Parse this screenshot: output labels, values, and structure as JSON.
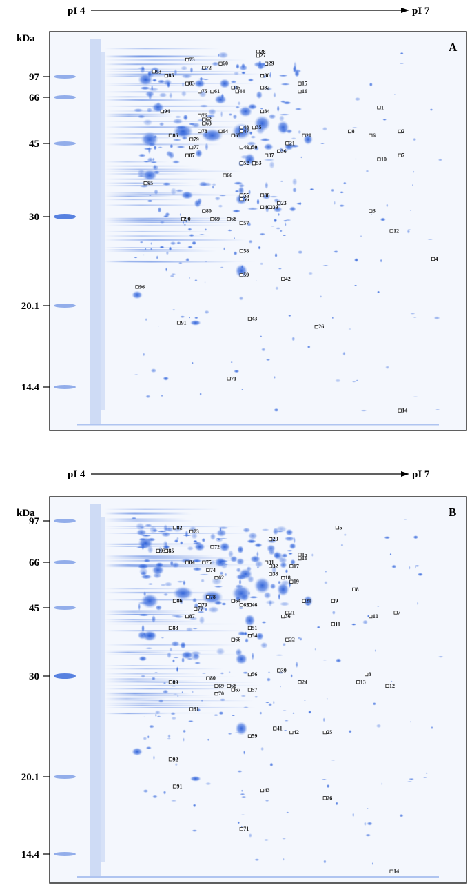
{
  "colors": {
    "gel_background": "#f4f7fd",
    "gel_stain": "#2f63d8",
    "gel_stain_light": "#9fb8ec",
    "marker": "#1b1b1b",
    "frame": "#2a2a2a"
  },
  "panels": [
    {
      "id": "A",
      "panel_label": "A",
      "ph_axis": {
        "start": "pI 4",
        "end": "pI 7"
      },
      "mw_unit": "kDa",
      "mw_ticks": [
        {
          "label": "97",
          "value": 97
        },
        {
          "label": "66",
          "value": 66
        },
        {
          "label": "45",
          "value": 45
        },
        {
          "label": "30",
          "value": 30
        },
        {
          "label": "20.1",
          "value": 20.1
        },
        {
          "label": "14.4",
          "value": 14.4
        }
      ],
      "spots": [
        {
          "label": "1",
          "fx": 0.79,
          "fy": 0.19
        },
        {
          "label": "2",
          "fx": 0.84,
          "fy": 0.25
        },
        {
          "label": "3",
          "fx": 0.77,
          "fy": 0.45
        },
        {
          "label": "4",
          "fx": 0.92,
          "fy": 0.57
        },
        {
          "label": "6",
          "fx": 0.77,
          "fy": 0.26
        },
        {
          "label": "7",
          "fx": 0.84,
          "fy": 0.31
        },
        {
          "label": "8",
          "fx": 0.72,
          "fy": 0.25
        },
        {
          "label": "10",
          "fx": 0.79,
          "fy": 0.32
        },
        {
          "label": "12",
          "fx": 0.82,
          "fy": 0.5
        },
        {
          "label": "14",
          "fx": 0.84,
          "fy": 0.95
        },
        {
          "label": "15",
          "fx": 0.6,
          "fy": 0.13
        },
        {
          "label": "16",
          "fx": 0.6,
          "fy": 0.15
        },
        {
          "label": "20",
          "fx": 0.61,
          "fy": 0.26
        },
        {
          "label": "21",
          "fx": 0.57,
          "fy": 0.28
        },
        {
          "label": "23",
          "fx": 0.55,
          "fy": 0.43
        },
        {
          "label": "26",
          "fx": 0.64,
          "fy": 0.74
        },
        {
          "label": "27",
          "fx": 0.5,
          "fy": 0.06
        },
        {
          "label": "28",
          "fx": 0.5,
          "fy": 0.05
        },
        {
          "label": "29",
          "fx": 0.52,
          "fy": 0.08
        },
        {
          "label": "30",
          "fx": 0.51,
          "fy": 0.11
        },
        {
          "label": "32",
          "fx": 0.51,
          "fy": 0.14
        },
        {
          "label": "34",
          "fx": 0.51,
          "fy": 0.2
        },
        {
          "label": "35",
          "fx": 0.49,
          "fy": 0.24
        },
        {
          "label": "36",
          "fx": 0.55,
          "fy": 0.3
        },
        {
          "label": "37",
          "fx": 0.52,
          "fy": 0.31
        },
        {
          "label": "38",
          "fx": 0.51,
          "fy": 0.41
        },
        {
          "label": "39",
          "fx": 0.53,
          "fy": 0.44
        },
        {
          "label": "40",
          "fx": 0.51,
          "fy": 0.44
        },
        {
          "label": "42",
          "fx": 0.56,
          "fy": 0.62
        },
        {
          "label": "43",
          "fx": 0.48,
          "fy": 0.72
        },
        {
          "label": "44",
          "fx": 0.45,
          "fy": 0.15
        },
        {
          "label": "45",
          "fx": 0.44,
          "fy": 0.14
        },
        {
          "label": "47",
          "fx": 0.46,
          "fy": 0.25
        },
        {
          "label": "48",
          "fx": 0.46,
          "fy": 0.24
        },
        {
          "label": "49",
          "fx": 0.46,
          "fy": 0.29
        },
        {
          "label": "50",
          "fx": 0.48,
          "fy": 0.29
        },
        {
          "label": "52",
          "fx": 0.46,
          "fy": 0.33
        },
        {
          "label": "53",
          "fx": 0.49,
          "fy": 0.33
        },
        {
          "label": "55",
          "fx": 0.46,
          "fy": 0.41
        },
        {
          "label": "56",
          "fx": 0.46,
          "fy": 0.42
        },
        {
          "label": "57",
          "fx": 0.46,
          "fy": 0.48
        },
        {
          "label": "58",
          "fx": 0.46,
          "fy": 0.55
        },
        {
          "label": "59",
          "fx": 0.46,
          "fy": 0.61
        },
        {
          "label": "60",
          "fx": 0.41,
          "fy": 0.08
        },
        {
          "label": "61",
          "fx": 0.39,
          "fy": 0.15
        },
        {
          "label": "62",
          "fx": 0.37,
          "fy": 0.22
        },
        {
          "label": "63",
          "fx": 0.37,
          "fy": 0.23
        },
        {
          "label": "64",
          "fx": 0.41,
          "fy": 0.25
        },
        {
          "label": "65",
          "fx": 0.44,
          "fy": 0.26
        },
        {
          "label": "66",
          "fx": 0.42,
          "fy": 0.36
        },
        {
          "label": "68",
          "fx": 0.43,
          "fy": 0.47
        },
        {
          "label": "69",
          "fx": 0.39,
          "fy": 0.47
        },
        {
          "label": "71",
          "fx": 0.43,
          "fy": 0.87
        },
        {
          "label": "72",
          "fx": 0.37,
          "fy": 0.09
        },
        {
          "label": "73",
          "fx": 0.33,
          "fy": 0.07
        },
        {
          "label": "75",
          "fx": 0.36,
          "fy": 0.15
        },
        {
          "label": "76",
          "fx": 0.36,
          "fy": 0.21
        },
        {
          "label": "77",
          "fx": 0.34,
          "fy": 0.29
        },
        {
          "label": "78",
          "fx": 0.36,
          "fy": 0.25
        },
        {
          "label": "79",
          "fx": 0.34,
          "fy": 0.27
        },
        {
          "label": "80",
          "fx": 0.37,
          "fy": 0.45
        },
        {
          "label": "83",
          "fx": 0.33,
          "fy": 0.13
        },
        {
          "label": "85",
          "fx": 0.28,
          "fy": 0.11
        },
        {
          "label": "86",
          "fx": 0.29,
          "fy": 0.26
        },
        {
          "label": "87",
          "fx": 0.33,
          "fy": 0.31
        },
        {
          "label": "90",
          "fx": 0.32,
          "fy": 0.47
        },
        {
          "label": "91",
          "fx": 0.31,
          "fy": 0.73
        },
        {
          "label": "93",
          "fx": 0.25,
          "fy": 0.1
        },
        {
          "label": "94",
          "fx": 0.27,
          "fy": 0.2
        },
        {
          "label": "95",
          "fx": 0.23,
          "fy": 0.38
        },
        {
          "label": "96",
          "fx": 0.21,
          "fy": 0.64
        }
      ]
    },
    {
      "id": "B",
      "panel_label": "B",
      "ph_axis": {
        "start": "pI 4",
        "end": "pI 7"
      },
      "mw_unit": "kDa",
      "mw_ticks": [
        {
          "label": "97",
          "value": 97
        },
        {
          "label": "66",
          "value": 66
        },
        {
          "label": "45",
          "value": 45
        },
        {
          "label": "30",
          "value": 30
        },
        {
          "label": "20.1",
          "value": 20.1
        },
        {
          "label": "14.4",
          "value": 14.4
        }
      ],
      "spots": [
        {
          "label": "3",
          "fx": 0.76,
          "fy": 0.46
        },
        {
          "label": "5",
          "fx": 0.69,
          "fy": 0.08
        },
        {
          "label": "7",
          "fx": 0.83,
          "fy": 0.3
        },
        {
          "label": "8",
          "fx": 0.73,
          "fy": 0.24
        },
        {
          "label": "9",
          "fx": 0.68,
          "fy": 0.27
        },
        {
          "label": "10",
          "fx": 0.77,
          "fy": 0.31
        },
        {
          "label": "11",
          "fx": 0.68,
          "fy": 0.33
        },
        {
          "label": "12",
          "fx": 0.81,
          "fy": 0.49
        },
        {
          "label": "13",
          "fx": 0.74,
          "fy": 0.48
        },
        {
          "label": "14",
          "fx": 0.82,
          "fy": 0.97
        },
        {
          "label": "15",
          "fx": 0.6,
          "fy": 0.15
        },
        {
          "label": "16",
          "fx": 0.6,
          "fy": 0.16
        },
        {
          "label": "17",
          "fx": 0.58,
          "fy": 0.18
        },
        {
          "label": "18",
          "fx": 0.56,
          "fy": 0.21
        },
        {
          "label": "19",
          "fx": 0.58,
          "fy": 0.22
        },
        {
          "label": "20",
          "fx": 0.61,
          "fy": 0.27
        },
        {
          "label": "21",
          "fx": 0.57,
          "fy": 0.3
        },
        {
          "label": "22",
          "fx": 0.57,
          "fy": 0.37
        },
        {
          "label": "24",
          "fx": 0.6,
          "fy": 0.48
        },
        {
          "label": "25",
          "fx": 0.66,
          "fy": 0.61
        },
        {
          "label": "26",
          "fx": 0.66,
          "fy": 0.78
        },
        {
          "label": "29",
          "fx": 0.53,
          "fy": 0.11
        },
        {
          "label": "31",
          "fx": 0.52,
          "fy": 0.17
        },
        {
          "label": "32",
          "fx": 0.53,
          "fy": 0.18
        },
        {
          "label": "33",
          "fx": 0.53,
          "fy": 0.2
        },
        {
          "label": "36",
          "fx": 0.56,
          "fy": 0.31
        },
        {
          "label": "39",
          "fx": 0.55,
          "fy": 0.45
        },
        {
          "label": "41",
          "fx": 0.54,
          "fy": 0.6
        },
        {
          "label": "42",
          "fx": 0.58,
          "fy": 0.61
        },
        {
          "label": "43",
          "fx": 0.51,
          "fy": 0.76
        },
        {
          "label": "46",
          "fx": 0.48,
          "fy": 0.28
        },
        {
          "label": "51",
          "fx": 0.48,
          "fy": 0.34
        },
        {
          "label": "54",
          "fx": 0.48,
          "fy": 0.36
        },
        {
          "label": "56",
          "fx": 0.48,
          "fy": 0.46
        },
        {
          "label": "57",
          "fx": 0.48,
          "fy": 0.5
        },
        {
          "label": "59",
          "fx": 0.48,
          "fy": 0.62
        },
        {
          "label": "62",
          "fx": 0.4,
          "fy": 0.21
        },
        {
          "label": "64",
          "fx": 0.44,
          "fy": 0.27
        },
        {
          "label": "65",
          "fx": 0.46,
          "fy": 0.28
        },
        {
          "label": "66",
          "fx": 0.44,
          "fy": 0.37
        },
        {
          "label": "67",
          "fx": 0.44,
          "fy": 0.5
        },
        {
          "label": "68",
          "fx": 0.43,
          "fy": 0.49
        },
        {
          "label": "69",
          "fx": 0.4,
          "fy": 0.49
        },
        {
          "label": "70",
          "fx": 0.4,
          "fy": 0.51
        },
        {
          "label": "71",
          "fx": 0.46,
          "fy": 0.86
        },
        {
          "label": "72",
          "fx": 0.39,
          "fy": 0.13
        },
        {
          "label": "73",
          "fx": 0.34,
          "fy": 0.09
        },
        {
          "label": "74",
          "fx": 0.38,
          "fy": 0.19
        },
        {
          "label": "75",
          "fx": 0.37,
          "fy": 0.17
        },
        {
          "label": "77",
          "fx": 0.35,
          "fy": 0.29
        },
        {
          "label": "78",
          "fx": 0.38,
          "fy": 0.26
        },
        {
          "label": "79",
          "fx": 0.36,
          "fy": 0.28
        },
        {
          "label": "80",
          "fx": 0.38,
          "fy": 0.47
        },
        {
          "label": "81",
          "fx": 0.34,
          "fy": 0.55
        },
        {
          "label": "82",
          "fx": 0.3,
          "fy": 0.08
        },
        {
          "label": "84",
          "fx": 0.33,
          "fy": 0.17
        },
        {
          "label": "85",
          "fx": 0.28,
          "fy": 0.14
        },
        {
          "label": "86",
          "fx": 0.3,
          "fy": 0.27
        },
        {
          "label": "87",
          "fx": 0.33,
          "fy": 0.31
        },
        {
          "label": "88",
          "fx": 0.29,
          "fy": 0.34
        },
        {
          "label": "89",
          "fx": 0.29,
          "fy": 0.48
        },
        {
          "label": "91",
          "fx": 0.3,
          "fy": 0.75
        },
        {
          "label": "92",
          "fx": 0.29,
          "fy": 0.68
        },
        {
          "label": "93",
          "fx": 0.26,
          "fy": 0.14
        }
      ]
    }
  ]
}
